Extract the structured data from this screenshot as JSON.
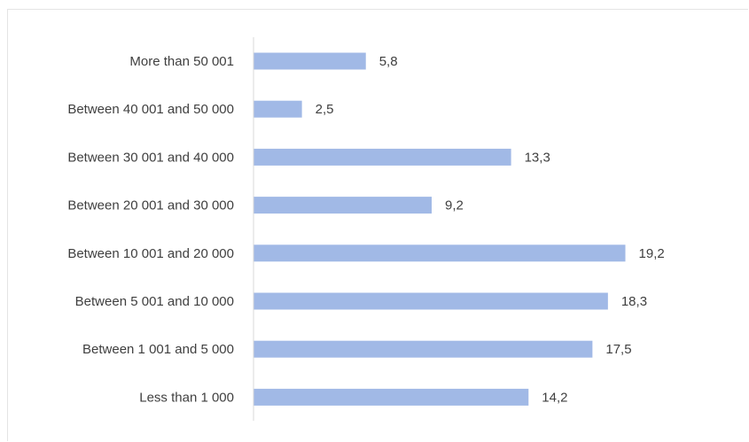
{
  "chart_data": {
    "type": "bar",
    "orientation": "horizontal",
    "categories": [
      "More than 50 001",
      "Between 40 001 and 50 000",
      "Between 30 001 and 40 000",
      "Between 20 001 and 30 000",
      "Between 10 001 and 20 000",
      "Between 5 001 and 10 000",
      "Between 1 001 and 5 000",
      "Less than 1 000"
    ],
    "values": [
      5.8,
      2.5,
      13.3,
      9.2,
      19.2,
      18.3,
      17.5,
      14.2
    ],
    "value_labels": [
      "5,8",
      "2,5",
      "13,3",
      "9,2",
      "19,2",
      "18,3",
      "17,5",
      "14,2"
    ],
    "bar_color": "#a1b9e6",
    "axis_color": "#d9d9d9",
    "xlim": [
      0,
      20
    ],
    "grid": false,
    "legend": "none"
  }
}
